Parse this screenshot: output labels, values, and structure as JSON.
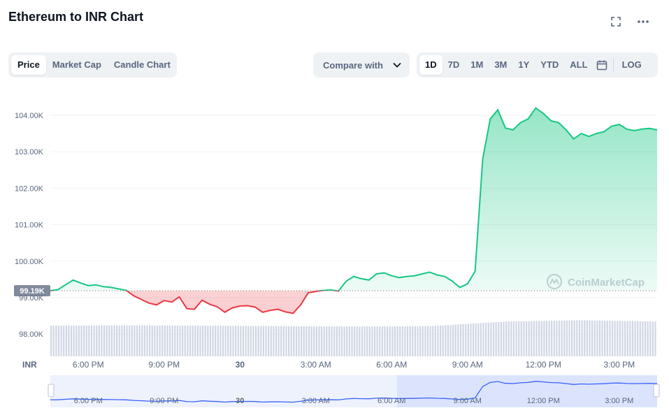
{
  "header": {
    "title": "Ethereum to INR Chart",
    "fullscreen_icon": "expand-icon",
    "more_icon": "more-horizontal-icon"
  },
  "view_tabs": [
    {
      "label": "Price",
      "active": true
    },
    {
      "label": "Market Cap",
      "active": false
    },
    {
      "label": "Candle Chart",
      "active": false
    }
  ],
  "compare": {
    "label": "Compare with",
    "icon": "chevron-down-icon"
  },
  "ranges": [
    {
      "label": "1D",
      "active": true
    },
    {
      "label": "7D",
      "active": false
    },
    {
      "label": "1M",
      "active": false
    },
    {
      "label": "3M",
      "active": false
    },
    {
      "label": "1Y",
      "active": false
    },
    {
      "label": "YTD",
      "active": false
    },
    {
      "label": "ALL",
      "active": false
    }
  ],
  "calendar_icon": "calendar-icon",
  "log_label": "LOG",
  "watermark": "CoinMarketCap",
  "colors": {
    "up": "#16c784",
    "down": "#ea3943",
    "accent": "#3861fb",
    "volume": "#cfd6e4"
  },
  "chart_data": {
    "type": "line",
    "currency_label": "INR",
    "y_ticks": [
      "104.00K",
      "103.00K",
      "102.00K",
      "101.00K",
      "100.00K",
      "99.00K",
      "98.00K"
    ],
    "ylim": [
      97.2,
      104.7
    ],
    "x_ticks": [
      "6:00 PM",
      "9:00 PM",
      "30",
      "3:00 AM",
      "6:00 AM",
      "9:00 AM",
      "12:00 PM",
      "3:00 PM"
    ],
    "baseline": {
      "value": 99.19,
      "label": "99.19K"
    },
    "price_series": {
      "x_hours": [
        0,
        0.3,
        0.6,
        0.9,
        1.2,
        1.5,
        1.8,
        2.1,
        2.4,
        2.7,
        3.0,
        3.3,
        3.6,
        3.9,
        4.2,
        4.5,
        4.8,
        5.1,
        5.4,
        5.7,
        6.0,
        6.3,
        6.6,
        6.9,
        7.2,
        7.5,
        7.8,
        8.1,
        8.4,
        8.7,
        9.0,
        9.3,
        9.6,
        9.9,
        10.2,
        10.5,
        10.8,
        11.1,
        11.4,
        11.7,
        12.0,
        12.3,
        12.6,
        12.9,
        13.2,
        13.5,
        13.8,
        14.1,
        14.4,
        14.7,
        15.0,
        15.3,
        15.6,
        15.9,
        16.2,
        16.5,
        16.8,
        17.1,
        17.4,
        17.7,
        18.0,
        18.3,
        18.6,
        18.9,
        19.2,
        19.5,
        19.8,
        20.1,
        20.4,
        20.7,
        21.0,
        21.3,
        21.6,
        21.9,
        22.2,
        22.5,
        22.8,
        23.1,
        23.4,
        23.7,
        24.0
      ],
      "prices": [
        99.19,
        99.22,
        99.35,
        99.48,
        99.4,
        99.33,
        99.35,
        99.3,
        99.28,
        99.24,
        99.2,
        99.05,
        98.95,
        98.85,
        98.8,
        98.92,
        98.88,
        99.02,
        98.7,
        98.68,
        98.93,
        98.82,
        98.75,
        98.6,
        98.72,
        98.77,
        98.78,
        98.74,
        98.6,
        98.65,
        98.68,
        98.61,
        98.57,
        98.8,
        99.13,
        99.17,
        99.2,
        99.21,
        99.18,
        99.45,
        99.58,
        99.52,
        99.48,
        99.65,
        99.68,
        99.6,
        99.55,
        99.58,
        99.6,
        99.65,
        99.7,
        99.62,
        99.58,
        99.45,
        99.28,
        99.38,
        99.72,
        102.8,
        103.9,
        104.15,
        103.65,
        103.6,
        103.8,
        103.9,
        104.2,
        104.05,
        103.85,
        103.8,
        103.6,
        103.35,
        103.5,
        103.42,
        103.5,
        103.55,
        103.7,
        103.75,
        103.62,
        103.58,
        103.62,
        103.64,
        103.6
      ]
    },
    "volume_series": {
      "x_hours": [
        0,
        3,
        6,
        9,
        12,
        15,
        18,
        21,
        24
      ],
      "values": [
        0.73,
        0.74,
        0.73,
        0.72,
        0.71,
        0.72,
        0.83,
        0.86,
        0.83
      ]
    },
    "navigator_x_ticks": [
      "6:00 PM",
      "9:00 PM",
      "30",
      "3:00 AM",
      "6:00 AM",
      "9:00 AM",
      "12:00 PM",
      "3:00 PM"
    ]
  }
}
